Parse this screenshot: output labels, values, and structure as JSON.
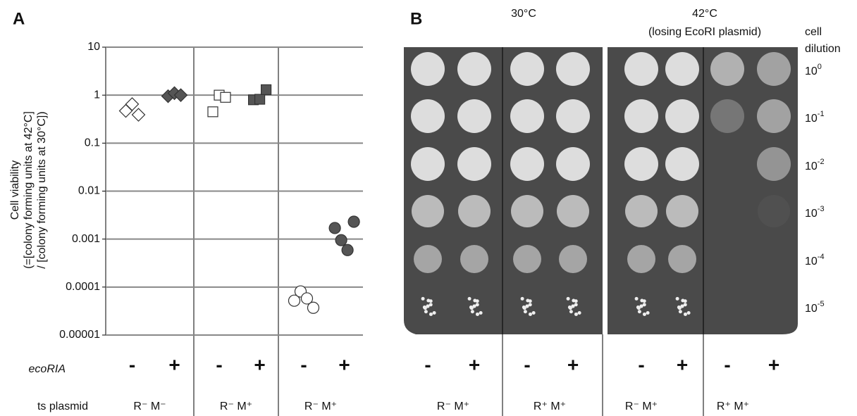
{
  "panel_labels": [
    "A",
    "B"
  ],
  "chart_data": {
    "type": "scatter",
    "ylabel": [
      "Cell viability",
      "(=[colony forming units at 42°C]",
      "/ [colony forming units at 30°C])"
    ],
    "log_y": true,
    "grid": true,
    "ylim": [
      1e-05,
      10
    ],
    "yticks": [
      10,
      1,
      0.1,
      0.01,
      0.001,
      0.0001,
      1e-05
    ],
    "row_labels": [
      "ecoRIA",
      "ts plasmid"
    ],
    "categories": [
      "-",
      "+",
      "-",
      "+",
      "-",
      "+"
    ],
    "groups": [
      "R⁻ M⁻",
      "R⁻ M⁺",
      "R⁻ M⁺"
    ],
    "series": [
      {
        "marker": "diamond",
        "color": "#ffffff",
        "values": [
          0.47,
          0.65,
          0.39
        ]
      },
      {
        "marker": "diamond",
        "color": "#555555",
        "values": [
          0.95,
          1.1,
          1.0
        ]
      },
      {
        "marker": "square",
        "color": "#ffffff",
        "values": [
          0.45,
          1.0,
          0.9
        ]
      },
      {
        "marker": "square",
        "color": "#555555",
        "values": [
          0.8,
          0.82,
          1.3
        ]
      },
      {
        "marker": "circle",
        "color": "#ffffff",
        "values": [
          5.2e-05,
          8.1e-05,
          5.8e-05,
          3.7e-05
        ]
      },
      {
        "marker": "circle",
        "color": "#555555",
        "values": [
          0.0017,
          0.00095,
          0.00059,
          0.0023
        ]
      }
    ]
  },
  "panel_b": {
    "temps": [
      "30°C",
      "42°C"
    ],
    "temp_note": "(losing EcoRI plasmid)",
    "dilution_header": [
      "cell",
      "dilution"
    ],
    "dilutions": [
      {
        "base": "10",
        "exp": "0"
      },
      {
        "base": "10",
        "exp": "-1"
      },
      {
        "base": "10",
        "exp": "-2"
      },
      {
        "base": "10",
        "exp": "-3"
      },
      {
        "base": "10",
        "exp": "-4"
      },
      {
        "base": "10",
        "exp": "-5"
      }
    ],
    "signs": [
      "-",
      "+",
      "-",
      "+",
      "-",
      "+",
      "-",
      "+"
    ],
    "groups": [
      "R⁻ M⁺",
      "R⁺ M⁺",
      "R⁻ M⁺",
      "R⁺ M⁺"
    ]
  }
}
